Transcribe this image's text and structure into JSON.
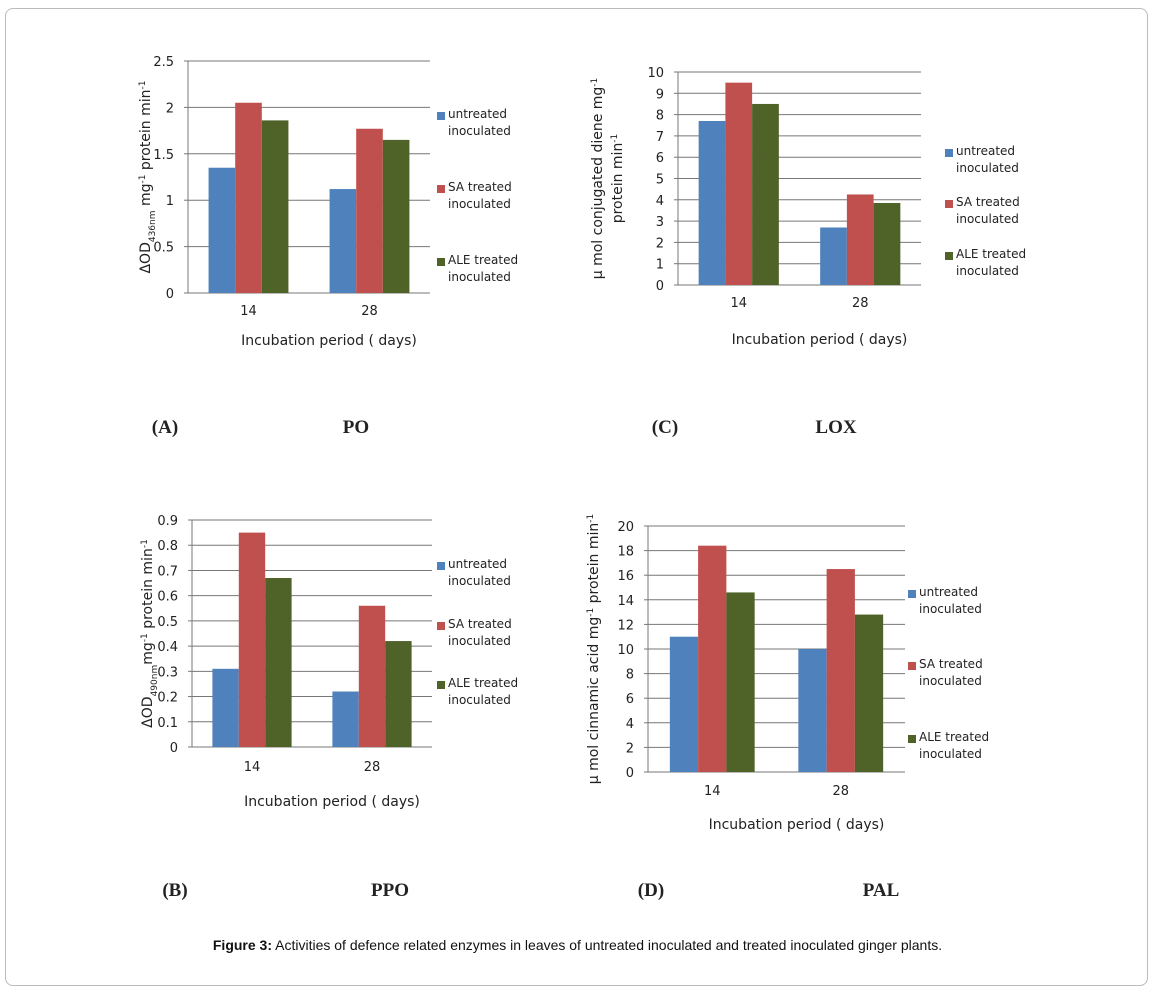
{
  "chart_data": [
    {
      "type": "bar",
      "panel": "(A)",
      "panel_title": "PO",
      "ylabel": [
        [
          {
            "text": "ΔOD"
          },
          {
            "text": "436nm",
            "shift": "sub"
          },
          {
            "text": " mg"
          },
          {
            "text": "-1",
            "shift": "sup"
          },
          {
            "text": " protein min"
          },
          {
            "text": "-1",
            "shift": "sup"
          }
        ]
      ],
      "xlabel": "Incubation period ( days)",
      "categories": [
        "14",
        "28"
      ],
      "series": [
        {
          "name": "untreated inoculated",
          "color": "#4f81bd",
          "values": [
            1.35,
            1.12
          ]
        },
        {
          "name": "SA treated inoculated",
          "color": "#c0504d",
          "values": [
            2.05,
            1.77
          ]
        },
        {
          "name": "ALE treated inoculated",
          "color": "#4f6228",
          "values": [
            1.86,
            1.65
          ]
        }
      ],
      "ylim": [
        0,
        2.5
      ],
      "yticks": [
        0,
        0.5,
        1,
        1.5,
        2,
        2.5
      ],
      "grid": true
    },
    {
      "type": "bar",
      "panel": "(C)",
      "panel_title": "LOX",
      "ylabel": [
        [
          {
            "text": "µ mol conjugated diene  mg"
          },
          {
            "text": "-1",
            "shift": "sup"
          }
        ],
        [
          {
            "text": "protein min"
          },
          {
            "text": "-1",
            "shift": "sup"
          }
        ]
      ],
      "xlabel": "Incubation period ( days)",
      "categories": [
        "14",
        "28"
      ],
      "series": [
        {
          "name": "untreated inoculated",
          "color": "#4f81bd",
          "values": [
            7.7,
            2.7
          ]
        },
        {
          "name": "SA treated inoculated",
          "color": "#c0504d",
          "values": [
            9.5,
            4.25
          ]
        },
        {
          "name": "ALE treated inoculated",
          "color": "#4f6228",
          "values": [
            8.5,
            3.85
          ]
        }
      ],
      "ylim": [
        0,
        10
      ],
      "yticks": [
        0,
        1,
        2,
        3,
        4,
        5,
        6,
        7,
        8,
        9,
        10
      ],
      "grid": true
    },
    {
      "type": "bar",
      "panel": "(B)",
      "panel_title": "PPO",
      "ylabel": [
        [
          {
            "text": "ΔOD"
          },
          {
            "text": "490nm",
            "shift": "sub"
          },
          {
            "text": "mg"
          },
          {
            "text": "-1",
            "shift": "sup"
          },
          {
            "text": " protein min"
          },
          {
            "text": "-1",
            "shift": "sup"
          }
        ]
      ],
      "xlabel": "Incubation period ( days)",
      "categories": [
        "14",
        "28"
      ],
      "series": [
        {
          "name": "untreated inoculated",
          "color": "#4f81bd",
          "values": [
            0.31,
            0.22
          ]
        },
        {
          "name": "SA treated inoculated",
          "color": "#c0504d",
          "values": [
            0.85,
            0.56
          ]
        },
        {
          "name": "ALE treated inoculated",
          "color": "#4f6228",
          "values": [
            0.67,
            0.42
          ]
        }
      ],
      "ylim": [
        0,
        0.9
      ],
      "yticks": [
        0,
        0.1,
        0.2,
        0.3,
        0.4,
        0.5,
        0.6,
        0.7,
        0.8,
        0.9
      ],
      "grid": true
    },
    {
      "type": "bar",
      "panel": "(D)",
      "panel_title": "PAL",
      "ylabel": [
        [
          {
            "text": "µ mol cinnamic acid mg"
          },
          {
            "text": "-1",
            "shift": "sup"
          },
          {
            "text": " protein min"
          },
          {
            "text": "-1",
            "shift": "sup"
          }
        ]
      ],
      "xlabel": "Incubation period ( days)",
      "categories": [
        "14",
        "28"
      ],
      "series": [
        {
          "name": "untreated inoculated",
          "color": "#4f81bd",
          "values": [
            11,
            10
          ]
        },
        {
          "name": "SA treated inoculated",
          "color": "#c0504d",
          "values": [
            18.4,
            16.5
          ]
        },
        {
          "name": "ALE treated inoculated",
          "color": "#4f6228",
          "values": [
            14.6,
            12.8
          ]
        }
      ],
      "ylim": [
        0,
        20
      ],
      "yticks": [
        0,
        2,
        4,
        6,
        8,
        10,
        12,
        14,
        16,
        18,
        20
      ],
      "grid": true
    }
  ],
  "caption_label": "Figure 3:",
  "caption": "Activities of defence related enzymes in leaves of untreated inoculated and treated inoculated ginger plants."
}
